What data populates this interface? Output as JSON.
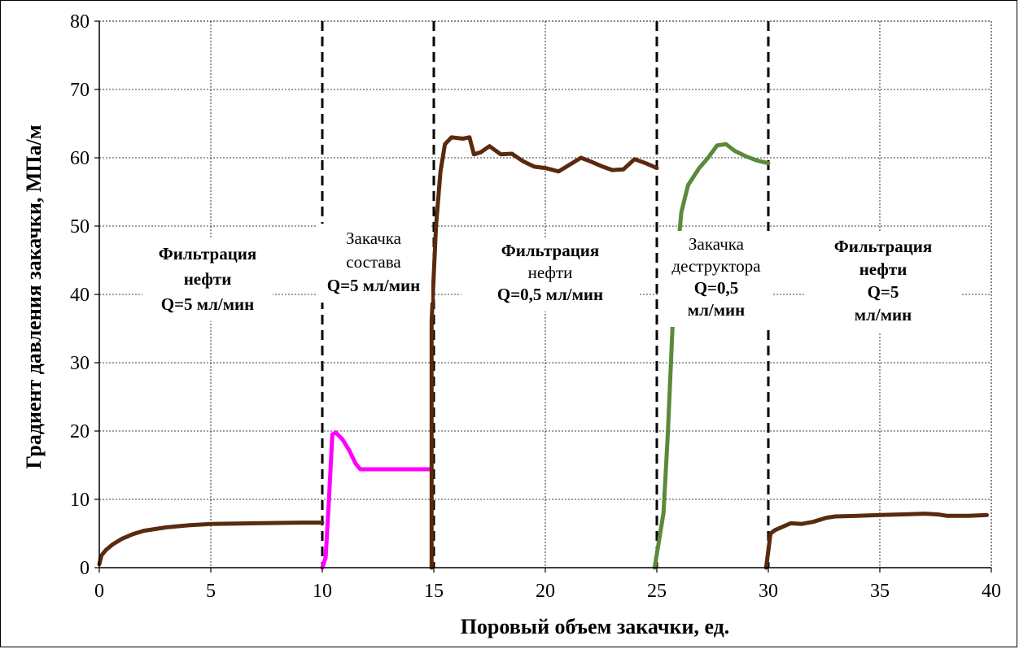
{
  "chart_data": {
    "type": "line",
    "title": "",
    "xlabel": "Поровый объем закачки, ед.",
    "ylabel": "Градиент давления закачки, МПа/м",
    "xlim": [
      0,
      40
    ],
    "ylim": [
      0,
      80
    ],
    "x_ticks": [
      "0",
      "5",
      "10",
      "15",
      "20",
      "25",
      "30",
      "35",
      "40"
    ],
    "y_ticks": [
      "0",
      "10",
      "20",
      "30",
      "40",
      "50",
      "60",
      "70",
      "80"
    ],
    "grid": true,
    "legend": "none",
    "boundaries": [
      10,
      15,
      25,
      30
    ],
    "series": [
      {
        "color": "#5a2a0e",
        "points": [
          [
            0,
            0.5
          ],
          [
            0.1,
            1.8
          ],
          [
            0.3,
            2.6
          ],
          [
            0.6,
            3.4
          ],
          [
            1,
            4.2
          ],
          [
            1.5,
            4.9
          ],
          [
            2,
            5.4
          ],
          [
            3,
            5.9
          ],
          [
            4,
            6.2
          ],
          [
            5,
            6.4
          ],
          [
            7,
            6.5
          ],
          [
            9,
            6.6
          ],
          [
            10,
            6.6
          ]
        ]
      },
      {
        "color": "#ff00ff",
        "points": [
          [
            10,
            0
          ],
          [
            10.15,
            1.5
          ],
          [
            10.3,
            10
          ],
          [
            10.45,
            19.5
          ],
          [
            10.6,
            19.8
          ],
          [
            10.9,
            18.8
          ],
          [
            11.2,
            17.2
          ],
          [
            11.5,
            15.2
          ],
          [
            11.7,
            14.4
          ],
          [
            12,
            14.4
          ],
          [
            13,
            14.4
          ],
          [
            14,
            14.4
          ],
          [
            14.8,
            14.4
          ]
        ]
      },
      {
        "color": "#5a2a0e",
        "points": [
          [
            14.9,
            0
          ],
          [
            14.9,
            36
          ],
          [
            15.1,
            50
          ],
          [
            15.3,
            58
          ],
          [
            15.5,
            62
          ],
          [
            15.8,
            63
          ],
          [
            16.3,
            62.8
          ],
          [
            16.6,
            63
          ],
          [
            16.8,
            60.5
          ],
          [
            17.1,
            60.8
          ],
          [
            17.5,
            61.7
          ],
          [
            18,
            60.5
          ],
          [
            18.5,
            60.6
          ],
          [
            19,
            59.5
          ],
          [
            19.5,
            58.7
          ],
          [
            20,
            58.5
          ],
          [
            20.6,
            58
          ],
          [
            21.1,
            59
          ],
          [
            21.6,
            60
          ],
          [
            22,
            59.5
          ],
          [
            22.5,
            58.8
          ],
          [
            23,
            58.2
          ],
          [
            23.5,
            58.3
          ],
          [
            24,
            59.8
          ],
          [
            24.5,
            59.2
          ],
          [
            25,
            58.5
          ]
        ]
      },
      {
        "color": "#5b8a3a",
        "points": [
          [
            24.9,
            0
          ],
          [
            25.3,
            8
          ],
          [
            25.5,
            20
          ],
          [
            25.7,
            35
          ],
          [
            25.9,
            45
          ],
          [
            26.1,
            52
          ],
          [
            26.4,
            56
          ],
          [
            26.9,
            58.5
          ],
          [
            27.3,
            60
          ],
          [
            27.7,
            61.8
          ],
          [
            28.1,
            62
          ],
          [
            28.5,
            61
          ],
          [
            29,
            60.2
          ],
          [
            29.5,
            59.6
          ],
          [
            30,
            59.2
          ]
        ]
      },
      {
        "color": "#5a2a0e",
        "points": [
          [
            29.9,
            0
          ],
          [
            30.1,
            5
          ],
          [
            30.3,
            5.5
          ],
          [
            31,
            6.5
          ],
          [
            31.5,
            6.4
          ],
          [
            32,
            6.7
          ],
          [
            32.6,
            7.3
          ],
          [
            33,
            7.5
          ],
          [
            34,
            7.6
          ],
          [
            35,
            7.7
          ],
          [
            36,
            7.8
          ],
          [
            37,
            7.9
          ],
          [
            37.6,
            7.8
          ],
          [
            38,
            7.6
          ],
          [
            39,
            7.6
          ],
          [
            39.8,
            7.7
          ]
        ]
      }
    ],
    "annotations": [
      {
        "lines": [
          "Фильтрация",
          "нефти",
          "Q=5 мл/мин"
        ],
        "weights": [
          "bold",
          "bold",
          "bold"
        ]
      },
      {
        "lines": [
          "Закачка",
          "состава",
          "Q=5 мл/мин"
        ],
        "weights": [
          "normal",
          "normal",
          "bold"
        ]
      },
      {
        "lines": [
          "Фильтрация",
          "нефти",
          "Q=0,5 мл/мин"
        ],
        "weights": [
          "bold",
          "normal",
          "bold"
        ]
      },
      {
        "lines": [
          "Закачка",
          "деструктора",
          "Q=0,5",
          "мл/мин"
        ],
        "weights": [
          "normal",
          "normal",
          "bold",
          "bold"
        ]
      },
      {
        "lines": [
          "Фильтрация",
          "нефти",
          "Q=5",
          "мл/мин"
        ],
        "weights": [
          "bold",
          "bold",
          "bold",
          "bold"
        ]
      }
    ]
  }
}
